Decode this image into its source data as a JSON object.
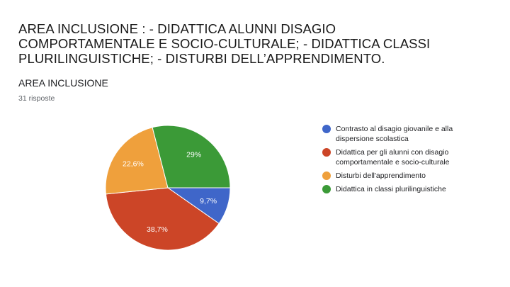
{
  "slide": {
    "title_lines": [
      "AREA INCLUSIONE : - DIDATTICA ALUNNI DISAGIO",
      "COMPORTAMENTALE E SOCIO-CULTURALE; - DIDATTICA CLASSI",
      "PLURILINGUISTICHE; - DISTURBI DELL’APPRENDIMENTO."
    ]
  },
  "question": {
    "title": "AREA INCLUSIONE",
    "responses": "31 risposte"
  },
  "chart_data": {
    "type": "pie",
    "slices": [
      {
        "name": "Contrasto al disagio giovanile e alla dispersione scolastica",
        "value": 9.7,
        "label": "9,7%",
        "color": "#3f66c9"
      },
      {
        "name": "Didattica per gli alunni con disagio comportamentale e socio-culturale",
        "value": 38.7,
        "label": "38,7%",
        "color": "#cc4527"
      },
      {
        "name": "Disturbi dell'apprendimento",
        "value": 22.6,
        "label": "22,6%",
        "color": "#efa03c"
      },
      {
        "name": "Didattica in classi plurilinguistiche",
        "value": 29,
        "label": "29%",
        "color": "#3b9a37"
      }
    ],
    "legend": [
      {
        "line1": "Contrasto al disagio giovanile e alla",
        "line2": "dispersione scolastica"
      },
      {
        "line1": "Didattica per gli alunni con disagio",
        "line2": "comportamentale e socio-culturale"
      },
      {
        "line1": "Disturbi dell'apprendimento",
        "line2": ""
      },
      {
        "line1": "Didattica in classi plurilinguistiche",
        "line2": ""
      }
    ],
    "legend_position": "right"
  }
}
